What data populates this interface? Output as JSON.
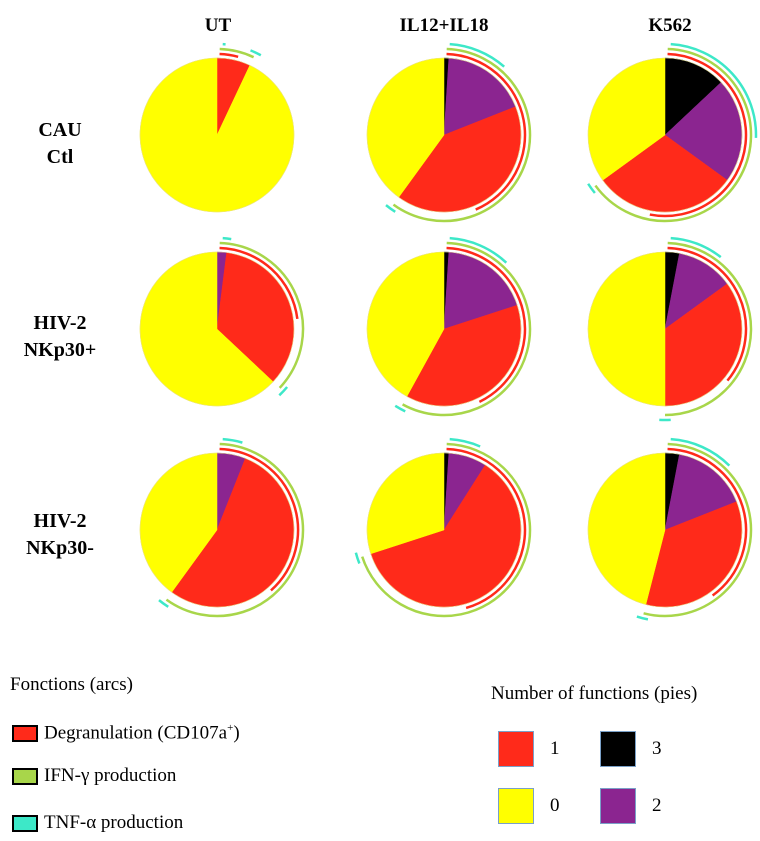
{
  "columns": [
    "UT",
    "IL12+IL18",
    "K562"
  ],
  "rows": [
    {
      "line1": "CAU",
      "line2": "Ctl"
    },
    {
      "line1": "HIV-2",
      "line2": "NKp30+"
    },
    {
      "line1": "HIV-2",
      "line2": "NKp30-"
    }
  ],
  "legend_arcs": {
    "title": "Fonctions (arcs)",
    "items": [
      {
        "label": "Degranulation (CD107a",
        "sup": "+",
        "suffix": ")",
        "color": "#ff2a1a"
      },
      {
        "label": "IFN-γ production",
        "color": "#a8d64a"
      },
      {
        "label": "TNF-α production",
        "color": "#3de8c8"
      }
    ]
  },
  "legend_pies": {
    "title": "Number of functions (pies)",
    "items": [
      {
        "label": "1",
        "color": "#ff2a1a"
      },
      {
        "label": "3",
        "color": "#000000"
      },
      {
        "label": "0",
        "color": "#ffff00"
      },
      {
        "label": "2",
        "color": "#8b2590"
      }
    ]
  },
  "colors": {
    "0": "#ffff00",
    "1": "#ff2a1a",
    "2": "#8b2590",
    "3": "#000000",
    "degranulation": "#ff2a1a",
    "ifng": "#a8d64a",
    "tnfa": "#3de8c8"
  },
  "chart_data": {
    "type": "pie",
    "description_units": "fraction of cells by number of functions; slices start at 12 o'clock, clockwise order 3, 2, 1, 0",
    "panels": [
      {
        "row": "CAU Ctl",
        "column": "UT",
        "slices": {
          "3": 0.0,
          "2": 0.0,
          "1": 0.07,
          "0": 0.93
        }
      },
      {
        "row": "CAU Ctl",
        "column": "IL12+IL18",
        "slices": {
          "3": 0.01,
          "2": 0.18,
          "1": 0.41,
          "0": 0.4
        }
      },
      {
        "row": "CAU Ctl",
        "column": "K562",
        "slices": {
          "3": 0.13,
          "2": 0.22,
          "1": 0.3,
          "0": 0.35
        }
      },
      {
        "row": "HIV-2 NKp30+",
        "column": "UT",
        "slices": {
          "3": 0.0,
          "2": 0.02,
          "1": 0.35,
          "0": 0.63
        }
      },
      {
        "row": "HIV-2 NKp30+",
        "column": "IL12+IL18",
        "slices": {
          "3": 0.01,
          "2": 0.19,
          "1": 0.38,
          "0": 0.42
        }
      },
      {
        "row": "HIV-2 NKp30+",
        "column": "K562",
        "slices": {
          "3": 0.03,
          "2": 0.12,
          "1": 0.35,
          "0": 0.5
        }
      },
      {
        "row": "HIV-2 NKp30-",
        "column": "UT",
        "slices": {
          "3": 0.0,
          "2": 0.06,
          "1": 0.54,
          "0": 0.4
        }
      },
      {
        "row": "HIV-2 NKp30-",
        "column": "IL12+IL18",
        "slices": {
          "3": 0.01,
          "2": 0.08,
          "1": 0.61,
          "0": 0.3
        }
      },
      {
        "row": "HIV-2 NKp30-",
        "column": "K562",
        "slices": {
          "3": 0.03,
          "2": 0.16,
          "1": 0.35,
          "0": 0.46
        }
      }
    ]
  }
}
